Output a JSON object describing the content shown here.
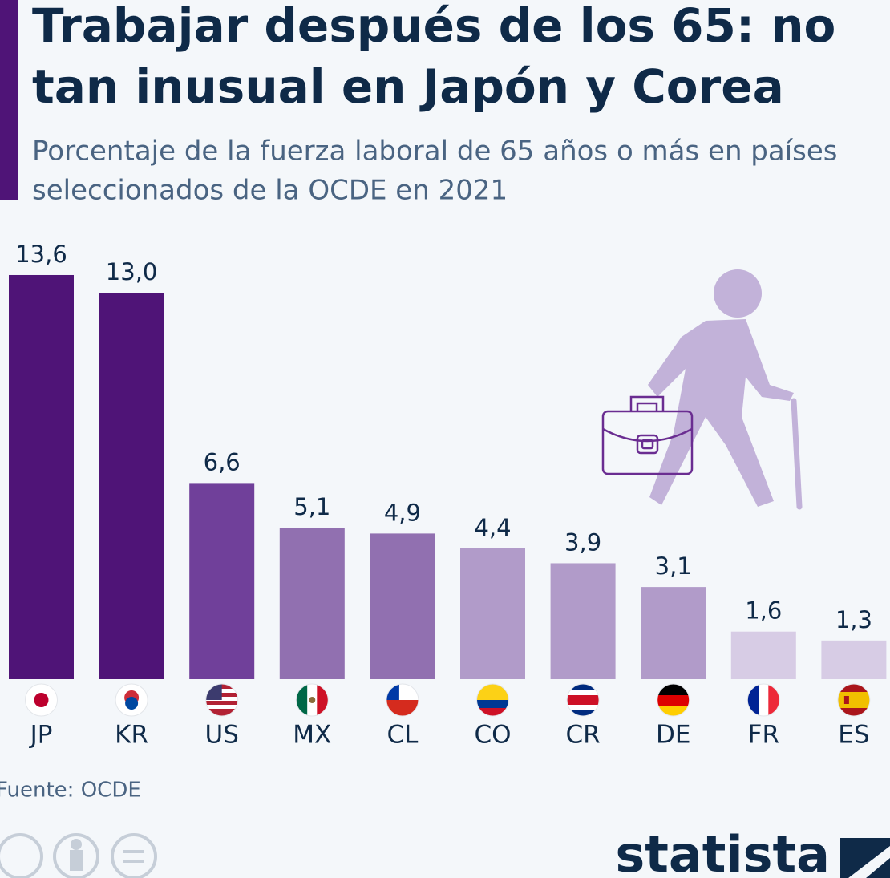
{
  "chart_data": {
    "type": "bar",
    "title": [
      "Trabajar después de los 65: no",
      "tan inusual en Japón y Corea"
    ],
    "subtitle": [
      "Porcentaje de la fuerza laboral de 65 años o más en países",
      "seleccionados de la OCDE en 2021"
    ],
    "categories": [
      "JP",
      "KR",
      "US",
      "MX",
      "CL",
      "CO",
      "CR",
      "DE",
      "FR",
      "ES"
    ],
    "values": [
      13.6,
      13.0,
      6.6,
      5.1,
      4.9,
      4.4,
      3.9,
      3.1,
      1.6,
      1.3
    ],
    "value_labels": [
      "13,6",
      "13,0",
      "6,6",
      "5,1",
      "4,9",
      "4,4",
      "3,9",
      "3,1",
      "1,6",
      "1,3"
    ],
    "colors": [
      "#4f1477",
      "#4f1477",
      "#70409a",
      "#9170b0",
      "#9170b0",
      "#b19bc9",
      "#b19bc9",
      "#b19bc9",
      "#d7cce5",
      "#d7cce5"
    ],
    "source": "Fuente: OCDE",
    "logo": "statista"
  }
}
